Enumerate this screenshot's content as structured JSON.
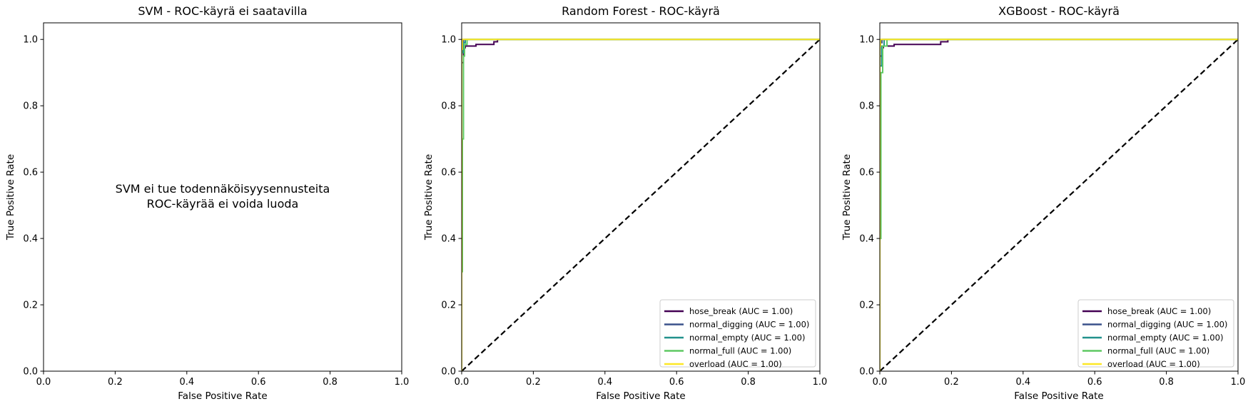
{
  "chart_data": [
    {
      "type": "line",
      "title": "SVM - ROC-käyrä ei saatavilla",
      "xlabel": "False Positive Rate",
      "ylabel": "True Positive Rate",
      "xlim": [
        0,
        1
      ],
      "ylim": [
        0,
        1.05
      ],
      "xticks": [
        "0.0",
        "0.2",
        "0.4",
        "0.6",
        "0.8",
        "1.0"
      ],
      "yticks": [
        "0.0",
        "0.2",
        "0.4",
        "0.6",
        "0.8",
        "1.0"
      ],
      "annotation": [
        "SVM ei tue todennäköisyysennusteita",
        "ROC-käyrää ei voida luoda"
      ],
      "series": [],
      "diagonal": false,
      "legend": "none"
    },
    {
      "type": "line",
      "title": "Random Forest - ROC-käyrä",
      "xlabel": "False Positive Rate",
      "ylabel": "True Positive Rate",
      "xlim": [
        0,
        1
      ],
      "ylim": [
        0,
        1.05
      ],
      "xticks": [
        "0.0",
        "0.2",
        "0.4",
        "0.6",
        "0.8",
        "1.0"
      ],
      "yticks": [
        "0.0",
        "0.2",
        "0.4",
        "0.6",
        "0.8",
        "1.0"
      ],
      "diagonal": true,
      "legend": "lower-right",
      "series": [
        {
          "name": "hose_break (AUC = 1.00)",
          "color": "#440154",
          "x": [
            0,
            0,
            0.005,
            0.005,
            0.01,
            0.01,
            0.04,
            0.04,
            0.09,
            0.09,
            0.1,
            0.1,
            1.0
          ],
          "y": [
            0,
            0.93,
            0.93,
            0.975,
            0.975,
            0.98,
            0.98,
            0.985,
            0.985,
            0.993,
            0.993,
            1.0,
            1.0
          ]
        },
        {
          "name": "normal_digging (AUC = 1.00)",
          "color": "#3b528b",
          "x": [
            0,
            0,
            0.005,
            0.005,
            1.0
          ],
          "y": [
            0,
            0.99,
            0.99,
            1.0,
            1.0
          ]
        },
        {
          "name": "normal_empty (AUC = 1.00)",
          "color": "#21918c",
          "x": [
            0,
            0,
            0.004,
            0.004,
            0.01,
            0.01,
            1.0
          ],
          "y": [
            0,
            0.96,
            0.96,
            0.99,
            0.99,
            1.0,
            1.0
          ]
        },
        {
          "name": "normal_full (AUC = 1.00)",
          "color": "#5ec962",
          "x": [
            0,
            0,
            0.002,
            0.002,
            0.005,
            0.005,
            0.008,
            0.008,
            0.015,
            0.015,
            1.0
          ],
          "y": [
            0,
            0.3,
            0.3,
            0.7,
            0.7,
            0.95,
            0.95,
            0.985,
            0.985,
            1.0,
            1.0
          ]
        },
        {
          "name": "overload (AUC = 1.00)",
          "color": "#fde725",
          "x": [
            0,
            0,
            0.002,
            0.002,
            1.0
          ],
          "y": [
            0,
            0.97,
            0.97,
            1.0,
            1.0
          ]
        }
      ]
    },
    {
      "type": "line",
      "title": "XGBoost - ROC-käyrä",
      "xlabel": "False Positive Rate",
      "ylabel": "True Positive Rate",
      "xlim": [
        0,
        1
      ],
      "ylim": [
        0,
        1.05
      ],
      "xticks": [
        "0.0",
        "0.2",
        "0.4",
        "0.6",
        "0.8",
        "1.0"
      ],
      "yticks": [
        "0.0",
        "0.2",
        "0.4",
        "0.6",
        "0.8",
        "1.0"
      ],
      "diagonal": true,
      "legend": "lower-right",
      "series": [
        {
          "name": "hose_break (AUC = 1.00)",
          "color": "#440154",
          "x": [
            0,
            0,
            0.005,
            0.005,
            0.01,
            0.01,
            0.04,
            0.04,
            0.17,
            0.17,
            0.19,
            0.19,
            1.0
          ],
          "y": [
            0,
            0.95,
            0.95,
            0.975,
            0.975,
            0.98,
            0.98,
            0.985,
            0.985,
            0.993,
            0.993,
            1.0,
            1.0
          ]
        },
        {
          "name": "normal_digging (AUC = 1.00)",
          "color": "#3b528b",
          "x": [
            0,
            0,
            0.006,
            0.006,
            1.0
          ],
          "y": [
            0,
            0.99,
            0.99,
            1.0,
            1.0
          ]
        },
        {
          "name": "normal_empty (AUC = 1.00)",
          "color": "#21918c",
          "x": [
            0,
            0,
            0.005,
            0.005,
            0.012,
            0.012,
            1.0
          ],
          "y": [
            0,
            0.92,
            0.92,
            0.98,
            0.98,
            1.0,
            1.0
          ]
        },
        {
          "name": "normal_full (AUC = 1.00)",
          "color": "#5ec962",
          "x": [
            0,
            0,
            0.003,
            0.003,
            0.008,
            0.008,
            0.02,
            0.02,
            1.0
          ],
          "y": [
            0,
            0.4,
            0.4,
            0.9,
            0.9,
            0.98,
            0.98,
            1.0,
            1.0
          ]
        },
        {
          "name": "overload (AUC = 1.00)",
          "color": "#fde725",
          "x": [
            0,
            0,
            0.002,
            0.002,
            1.0
          ],
          "y": [
            0,
            0.98,
            0.98,
            1.0,
            1.0
          ]
        }
      ]
    }
  ]
}
